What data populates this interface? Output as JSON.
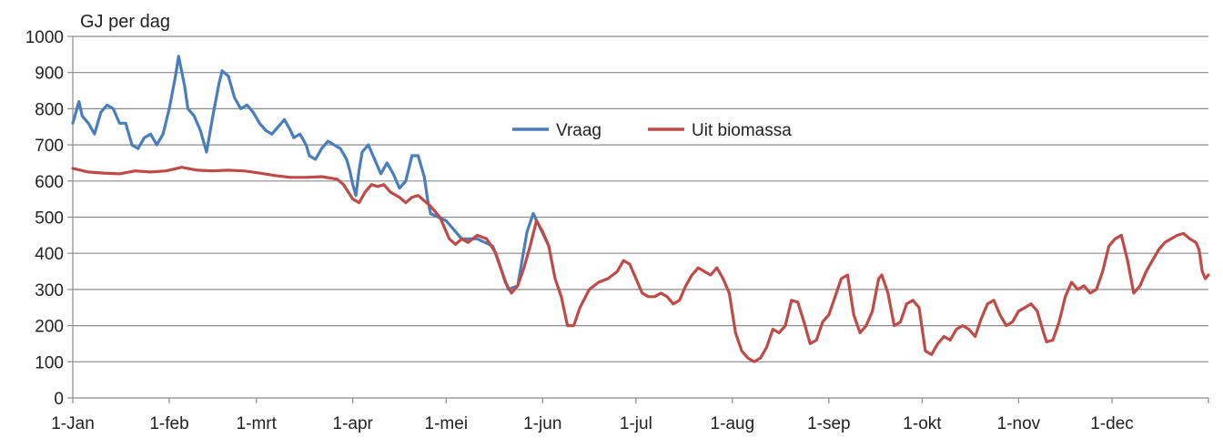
{
  "chart_data": {
    "type": "line",
    "title": "",
    "ylabel": "GJ per dag",
    "xlabel": "",
    "ylim": [
      0,
      1000
    ],
    "xlim": [
      0,
      365
    ],
    "yticks": [
      0,
      100,
      200,
      300,
      400,
      500,
      600,
      700,
      800,
      900,
      1000
    ],
    "xtick_labels": [
      "1-Jan",
      "1-feb",
      "1-mrt",
      "1-apr",
      "1-mei",
      "1-jun",
      "1-jul",
      "1-aug",
      "1-sep",
      "1-okt",
      "1-nov",
      "1-dec"
    ],
    "xtick_days": [
      0,
      31,
      59,
      90,
      120,
      151,
      181,
      212,
      243,
      273,
      304,
      334
    ],
    "grid": "horizontal",
    "legend_position": "top-center",
    "series": [
      {
        "name": "Vraag",
        "color": "#4a7ebb",
        "points": [
          [
            0,
            760
          ],
          [
            2,
            820
          ],
          [
            3,
            780
          ],
          [
            5,
            760
          ],
          [
            7,
            730
          ],
          [
            9,
            790
          ],
          [
            11,
            810
          ],
          [
            13,
            800
          ],
          [
            15,
            760
          ],
          [
            17,
            760
          ],
          [
            19,
            700
          ],
          [
            21,
            690
          ],
          [
            23,
            720
          ],
          [
            25,
            730
          ],
          [
            27,
            700
          ],
          [
            29,
            730
          ],
          [
            31,
            800
          ],
          [
            33,
            890
          ],
          [
            34,
            945
          ],
          [
            36,
            860
          ],
          [
            37,
            800
          ],
          [
            39,
            780
          ],
          [
            41,
            740
          ],
          [
            43,
            680
          ],
          [
            45,
            780
          ],
          [
            47,
            870
          ],
          [
            48,
            905
          ],
          [
            50,
            890
          ],
          [
            52,
            830
          ],
          [
            54,
            800
          ],
          [
            56,
            810
          ],
          [
            58,
            790
          ],
          [
            60,
            760
          ],
          [
            62,
            740
          ],
          [
            64,
            730
          ],
          [
            66,
            750
          ],
          [
            68,
            770
          ],
          [
            70,
            740
          ],
          [
            71,
            720
          ],
          [
            73,
            730
          ],
          [
            75,
            700
          ],
          [
            76,
            670
          ],
          [
            78,
            660
          ],
          [
            80,
            690
          ],
          [
            82,
            710
          ],
          [
            84,
            700
          ],
          [
            86,
            690
          ],
          [
            88,
            660
          ],
          [
            89,
            630
          ],
          [
            90,
            590
          ],
          [
            91,
            560
          ],
          [
            92,
            630
          ],
          [
            93,
            680
          ],
          [
            95,
            700
          ],
          [
            97,
            660
          ],
          [
            99,
            620
          ],
          [
            101,
            650
          ],
          [
            103,
            620
          ],
          [
            105,
            580
          ],
          [
            107,
            600
          ],
          [
            109,
            670
          ],
          [
            111,
            670
          ],
          [
            113,
            610
          ],
          [
            114,
            550
          ],
          [
            115,
            510
          ],
          [
            120,
            490
          ],
          [
            125,
            440
          ],
          [
            130,
            440
          ],
          [
            135,
            420
          ],
          [
            140,
            300
          ],
          [
            143,
            310
          ],
          [
            146,
            460
          ],
          [
            148,
            510
          ],
          [
            153,
            420
          ]
        ]
      },
      {
        "name": "Uit biomassa",
        "color": "#be4b48",
        "points": [
          [
            0,
            635
          ],
          [
            5,
            625
          ],
          [
            10,
            622
          ],
          [
            15,
            620
          ],
          [
            20,
            628
          ],
          [
            25,
            625
          ],
          [
            30,
            628
          ],
          [
            35,
            638
          ],
          [
            40,
            630
          ],
          [
            45,
            628
          ],
          [
            50,
            630
          ],
          [
            55,
            628
          ],
          [
            60,
            622
          ],
          [
            65,
            615
          ],
          [
            70,
            610
          ],
          [
            75,
            610
          ],
          [
            80,
            612
          ],
          [
            85,
            605
          ],
          [
            87,
            590
          ],
          [
            90,
            550
          ],
          [
            92,
            540
          ],
          [
            94,
            570
          ],
          [
            96,
            590
          ],
          [
            98,
            585
          ],
          [
            100,
            590
          ],
          [
            102,
            570
          ],
          [
            105,
            555
          ],
          [
            107,
            540
          ],
          [
            109,
            555
          ],
          [
            111,
            560
          ],
          [
            113,
            545
          ],
          [
            115,
            530
          ],
          [
            118,
            500
          ],
          [
            121,
            440
          ],
          [
            123,
            425
          ],
          [
            125,
            440
          ],
          [
            127,
            430
          ],
          [
            130,
            450
          ],
          [
            133,
            440
          ],
          [
            136,
            400
          ],
          [
            139,
            320
          ],
          [
            141,
            290
          ],
          [
            143,
            310
          ],
          [
            145,
            360
          ],
          [
            147,
            420
          ],
          [
            149,
            490
          ],
          [
            151,
            460
          ],
          [
            153,
            420
          ],
          [
            155,
            330
          ],
          [
            157,
            280
          ],
          [
            159,
            200
          ],
          [
            161,
            200
          ],
          [
            163,
            250
          ],
          [
            166,
            300
          ],
          [
            169,
            320
          ],
          [
            172,
            330
          ],
          [
            175,
            350
          ],
          [
            177,
            380
          ],
          [
            179,
            370
          ],
          [
            181,
            330
          ],
          [
            183,
            290
          ],
          [
            185,
            280
          ],
          [
            187,
            280
          ],
          [
            189,
            290
          ],
          [
            191,
            280
          ],
          [
            193,
            260
          ],
          [
            195,
            270
          ],
          [
            197,
            310
          ],
          [
            199,
            340
          ],
          [
            201,
            360
          ],
          [
            203,
            350
          ],
          [
            205,
            340
          ],
          [
            207,
            360
          ],
          [
            209,
            330
          ],
          [
            211,
            290
          ],
          [
            213,
            180
          ],
          [
            215,
            130
          ],
          [
            217,
            110
          ],
          [
            219,
            100
          ],
          [
            221,
            110
          ],
          [
            223,
            140
          ],
          [
            225,
            190
          ],
          [
            227,
            180
          ],
          [
            229,
            200
          ],
          [
            231,
            270
          ],
          [
            233,
            265
          ],
          [
            235,
            210
          ],
          [
            237,
            150
          ],
          [
            239,
            160
          ],
          [
            241,
            210
          ],
          [
            243,
            230
          ],
          [
            245,
            280
          ],
          [
            247,
            330
          ],
          [
            249,
            340
          ],
          [
            251,
            230
          ],
          [
            253,
            180
          ],
          [
            255,
            200
          ],
          [
            257,
            240
          ],
          [
            259,
            330
          ],
          [
            260,
            340
          ],
          [
            262,
            290
          ],
          [
            264,
            200
          ],
          [
            266,
            210
          ],
          [
            268,
            260
          ],
          [
            270,
            270
          ],
          [
            272,
            250
          ],
          [
            274,
            130
          ],
          [
            276,
            120
          ],
          [
            278,
            150
          ],
          [
            280,
            170
          ],
          [
            282,
            160
          ],
          [
            284,
            190
          ],
          [
            286,
            200
          ],
          [
            288,
            190
          ],
          [
            290,
            170
          ],
          [
            292,
            220
          ],
          [
            294,
            260
          ],
          [
            296,
            270
          ],
          [
            298,
            230
          ],
          [
            300,
            200
          ],
          [
            302,
            210
          ],
          [
            304,
            240
          ],
          [
            306,
            250
          ],
          [
            308,
            260
          ],
          [
            310,
            240
          ],
          [
            312,
            180
          ],
          [
            313,
            155
          ],
          [
            315,
            160
          ],
          [
            317,
            210
          ],
          [
            319,
            280
          ],
          [
            321,
            320
          ],
          [
            323,
            300
          ],
          [
            325,
            310
          ],
          [
            327,
            290
          ],
          [
            329,
            300
          ],
          [
            331,
            350
          ],
          [
            333,
            420
          ],
          [
            335,
            440
          ],
          [
            337,
            450
          ],
          [
            339,
            380
          ],
          [
            341,
            290
          ],
          [
            343,
            310
          ],
          [
            345,
            350
          ],
          [
            347,
            380
          ],
          [
            349,
            410
          ],
          [
            351,
            430
          ],
          [
            353,
            440
          ],
          [
            355,
            450
          ],
          [
            357,
            455
          ],
          [
            359,
            440
          ],
          [
            361,
            430
          ],
          [
            362,
            410
          ],
          [
            363,
            350
          ],
          [
            364,
            330
          ],
          [
            365,
            340
          ]
        ]
      }
    ]
  }
}
